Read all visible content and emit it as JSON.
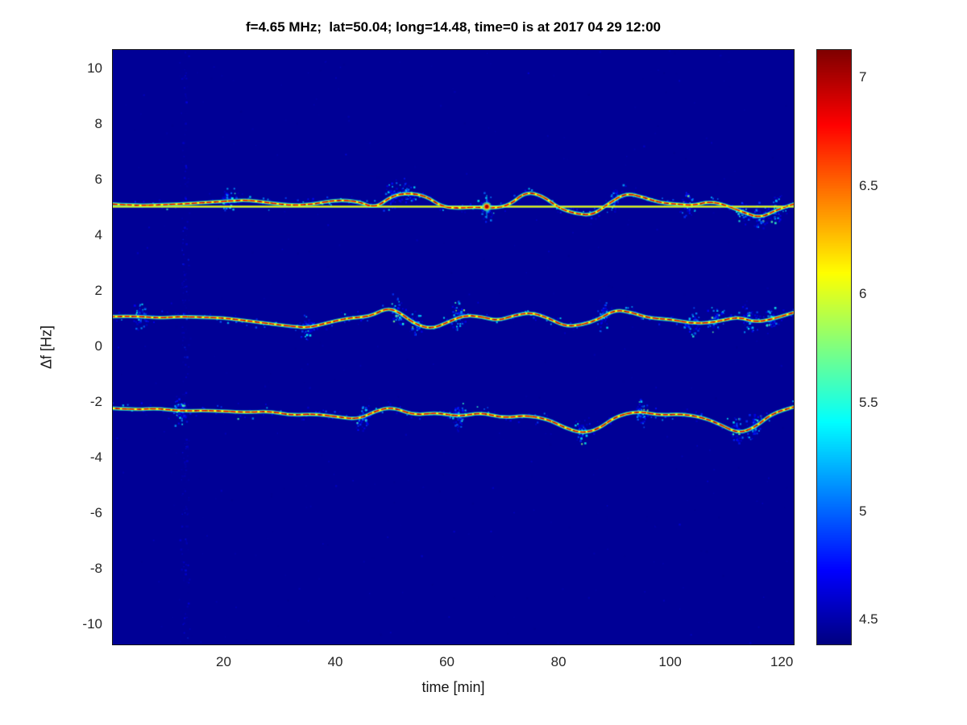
{
  "figure": {
    "title": "f=4.65 MHz;  lat=50.04; long=14.48, time=0 is at 2017 04 29 12:00"
  },
  "chart_data": {
    "type": "heatmap",
    "title": "f=4.65 MHz;  lat=50.04; long=14.48, time=0 is at 2017 04 29 12:00",
    "xlabel": "time [min]",
    "ylabel": "Δf [Hz]",
    "xlim": [
      0,
      122
    ],
    "ylim": [
      -10.7,
      10.7
    ],
    "xticks": [
      20,
      40,
      60,
      80,
      100,
      120
    ],
    "yticks": [
      -10,
      -8,
      -6,
      -4,
      -2,
      0,
      2,
      4,
      6,
      8,
      10
    ],
    "grid": false,
    "colormap": "jet",
    "colorbar": {
      "min": 4.39,
      "max": 7.13,
      "ticks": [
        4.5,
        5,
        5.5,
        6,
        6.5,
        7
      ],
      "position": "right"
    },
    "background_value": 4.45,
    "description": "Doppler-shift spectrogram with three bright reflection traces near +5, +1 and -2.3 Hz",
    "constant_line": {
      "y": 5.06,
      "value": 6.15,
      "hotspot_x": 67,
      "hotspot_value": 7.05
    },
    "noise_column": {
      "x": 13,
      "value": 4.7
    },
    "series": [
      {
        "name": "upper-trace",
        "x": [
          0,
          4,
          8,
          12,
          16,
          20,
          24,
          28,
          32,
          36,
          40,
          44,
          47,
          50,
          53,
          56,
          59,
          62,
          65,
          68,
          71,
          74,
          77,
          80,
          83,
          86,
          89,
          92,
          95,
          98,
          101,
          104,
          107,
          110,
          113,
          116,
          119,
          122
        ],
        "y": [
          5.15,
          5.1,
          5.12,
          5.15,
          5.2,
          5.25,
          5.3,
          5.2,
          5.1,
          5.15,
          5.3,
          5.25,
          5.0,
          5.45,
          5.55,
          5.45,
          5.05,
          5.0,
          5.05,
          5.0,
          5.1,
          5.6,
          5.45,
          5.0,
          4.8,
          4.75,
          5.2,
          5.55,
          5.4,
          5.2,
          5.15,
          5.1,
          5.25,
          5.1,
          4.85,
          4.65,
          4.95,
          5.15
        ],
        "clusters": [
          21,
          50,
          53,
          67,
          90,
          103,
          113,
          116,
          119
        ]
      },
      {
        "name": "middle-trace",
        "x": [
          0,
          4,
          8,
          12,
          16,
          20,
          24,
          28,
          32,
          35,
          38,
          42,
          46,
          49,
          51,
          54,
          57,
          60,
          63,
          66,
          69,
          72,
          75,
          78,
          81,
          84,
          87,
          90,
          93,
          96,
          100,
          104,
          108,
          112,
          115,
          118,
          122
        ],
        "y": [
          1.1,
          1.12,
          1.05,
          1.1,
          1.08,
          1.05,
          0.95,
          0.85,
          0.75,
          0.7,
          0.85,
          1.05,
          1.1,
          1.4,
          1.3,
          0.85,
          0.65,
          0.9,
          1.15,
          1.1,
          0.95,
          1.15,
          1.25,
          1.05,
          0.75,
          0.8,
          1.0,
          1.35,
          1.25,
          1.05,
          1.0,
          0.85,
          0.9,
          1.1,
          0.9,
          1.0,
          1.25
        ],
        "clusters": [
          5,
          35,
          51,
          54,
          62,
          88,
          104,
          108,
          114,
          118
        ]
      },
      {
        "name": "lower-trace",
        "x": [
          0,
          4,
          8,
          12,
          16,
          20,
          24,
          28,
          32,
          36,
          40,
          44,
          47,
          50,
          54,
          58,
          62,
          66,
          70,
          74,
          78,
          81,
          84,
          87,
          90,
          94,
          98,
          102,
          106,
          109,
          112,
          115,
          118,
          122
        ],
        "y": [
          -2.2,
          -2.25,
          -2.2,
          -2.3,
          -2.28,
          -2.3,
          -2.35,
          -2.3,
          -2.45,
          -2.4,
          -2.5,
          -2.6,
          -2.3,
          -2.15,
          -2.45,
          -2.35,
          -2.5,
          -2.35,
          -2.55,
          -2.45,
          -2.6,
          -2.9,
          -3.1,
          -2.95,
          -2.5,
          -2.3,
          -2.45,
          -2.4,
          -2.55,
          -2.8,
          -3.1,
          -2.9,
          -2.4,
          -2.15
        ],
        "clusters": [
          12,
          45,
          62,
          84,
          95,
          112,
          115
        ]
      }
    ]
  }
}
